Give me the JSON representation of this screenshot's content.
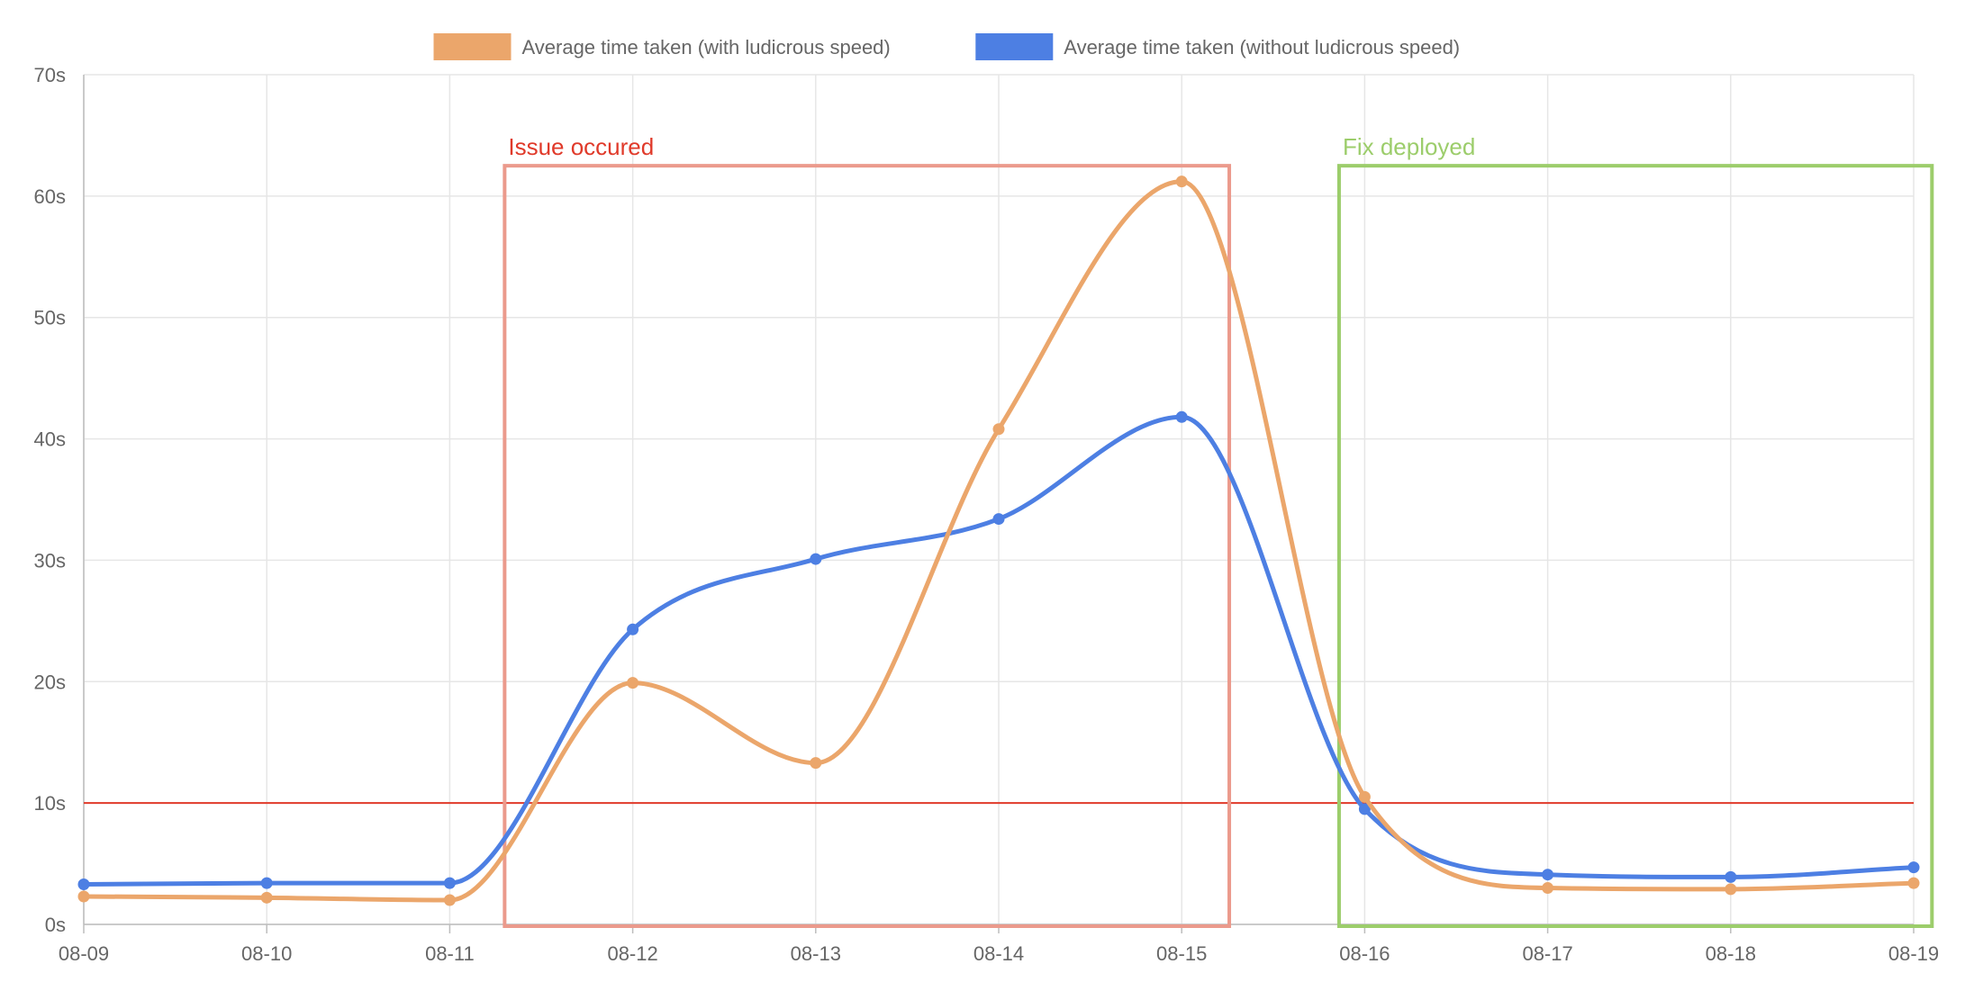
{
  "chart_data": {
    "type": "line",
    "title": "",
    "xlabel": "",
    "ylabel": "",
    "categories": [
      "08-09",
      "08-10",
      "08-11",
      "08-12",
      "08-13",
      "08-14",
      "08-15",
      "08-16",
      "08-17",
      "08-18",
      "08-19"
    ],
    "y_ticks": [
      "0s",
      "10s",
      "20s",
      "30s",
      "40s",
      "50s",
      "60s",
      "70s"
    ],
    "ylim": [
      0,
      70
    ],
    "grid": true,
    "legend_position": "top",
    "series": [
      {
        "name": "Average time taken (with ludicrous speed)",
        "color": "#eba66b",
        "values": [
          2.3,
          2.2,
          2.0,
          19.9,
          13.3,
          40.8,
          61.2,
          10.5,
          3.0,
          2.9,
          3.4
        ]
      },
      {
        "name": "Average time taken (without ludicrous speed)",
        "color": "#4d7fe3",
        "values": [
          3.3,
          3.4,
          3.4,
          24.3,
          30.1,
          33.4,
          41.8,
          9.5,
          4.1,
          3.9,
          4.7
        ]
      }
    ],
    "threshold": {
      "value": 10,
      "color": "#e03a2a"
    },
    "annotations": [
      {
        "label": "Issue occured",
        "color": "#eb9a8c",
        "text_color": "#e03a2a",
        "x_start": 2.3,
        "x_end": 6.26,
        "y_top": 62.5
      },
      {
        "label": "Fix deployed",
        "color": "#9ccd6b",
        "text_color": "#9ccd6b",
        "x_start": 6.86,
        "x_end": 10.1,
        "y_top": 62.5
      }
    ]
  }
}
